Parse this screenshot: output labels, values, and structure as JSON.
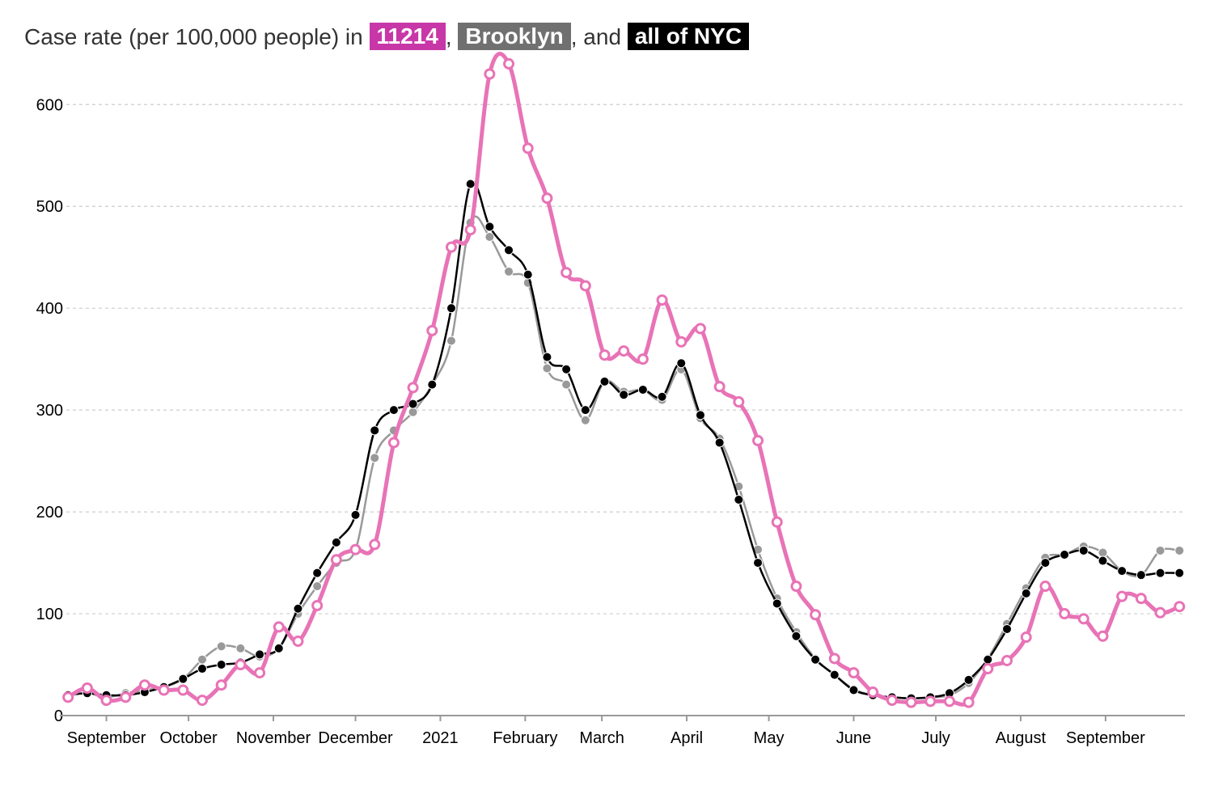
{
  "title": {
    "prefix": "Case rate (per 100,000 people) in",
    "zip": "11214",
    "sep1": ",",
    "borough": "Brooklyn",
    "sep2": ", and",
    "city": "all of NYC"
  },
  "colors": {
    "zip": "#e873b6",
    "zip_badge": "#c837a7",
    "borough": "#999999",
    "borough_badge": "#707070",
    "city": "#000000",
    "grid": "#cccccc",
    "axis": "#999999"
  },
  "chart_data": {
    "type": "line",
    "ylim": [
      0,
      655
    ],
    "y_ticks": [
      0,
      100,
      200,
      300,
      400,
      500,
      600
    ],
    "x_range": [
      "2020-08-15",
      "2021-09-30"
    ],
    "x_ticks": [
      {
        "date": "2020-09-01",
        "label": "September"
      },
      {
        "date": "2020-10-01",
        "label": "October"
      },
      {
        "date": "2020-11-01",
        "label": "November"
      },
      {
        "date": "2020-12-01",
        "label": "December"
      },
      {
        "date": "2021-01-01",
        "label": "2021"
      },
      {
        "date": "2021-02-01",
        "label": "February"
      },
      {
        "date": "2021-03-01",
        "label": "March"
      },
      {
        "date": "2021-04-01",
        "label": "April"
      },
      {
        "date": "2021-05-01",
        "label": "May"
      },
      {
        "date": "2021-06-01",
        "label": "June"
      },
      {
        "date": "2021-07-01",
        "label": "July"
      },
      {
        "date": "2021-08-01",
        "label": "August"
      },
      {
        "date": "2021-09-01",
        "label": "September"
      }
    ],
    "x": [
      "2020-08-18",
      "2020-08-25",
      "2020-09-01",
      "2020-09-08",
      "2020-09-15",
      "2020-09-22",
      "2020-09-29",
      "2020-10-06",
      "2020-10-13",
      "2020-10-20",
      "2020-10-27",
      "2020-11-03",
      "2020-11-10",
      "2020-11-17",
      "2020-11-24",
      "2020-12-01",
      "2020-12-08",
      "2020-12-15",
      "2020-12-22",
      "2020-12-29",
      "2021-01-05",
      "2021-01-12",
      "2021-01-19",
      "2021-01-26",
      "2021-02-02",
      "2021-02-09",
      "2021-02-16",
      "2021-02-23",
      "2021-03-02",
      "2021-03-09",
      "2021-03-16",
      "2021-03-23",
      "2021-03-30",
      "2021-04-06",
      "2021-04-13",
      "2021-04-20",
      "2021-04-27",
      "2021-05-04",
      "2021-05-11",
      "2021-05-18",
      "2021-05-25",
      "2021-06-01",
      "2021-06-08",
      "2021-06-15",
      "2021-06-22",
      "2021-06-29",
      "2021-07-06",
      "2021-07-13",
      "2021-07-20",
      "2021-07-27",
      "2021-08-03",
      "2021-08-10",
      "2021-08-17",
      "2021-08-24",
      "2021-08-31",
      "2021-09-07",
      "2021-09-14",
      "2021-09-21",
      "2021-09-28"
    ],
    "series": [
      {
        "name": "all of NYC",
        "color": "#000000",
        "marker": "filled",
        "values": [
          20,
          22,
          20,
          20,
          23,
          28,
          36,
          46,
          50,
          52,
          60,
          66,
          105,
          140,
          170,
          197,
          280,
          300,
          306,
          325,
          400,
          522,
          480,
          457,
          433,
          352,
          340,
          300,
          328,
          315,
          320,
          313,
          346,
          295,
          268,
          212,
          150,
          110,
          78,
          55,
          40,
          25,
          20,
          18,
          17,
          18,
          22,
          35,
          55,
          85,
          120,
          150,
          158,
          162,
          152,
          142,
          138,
          140,
          140
        ]
      },
      {
        "name": "Brooklyn",
        "color": "#999999",
        "marker": "filled",
        "values": [
          20,
          22,
          18,
          22,
          25,
          28,
          36,
          55,
          68,
          66,
          58,
          66,
          100,
          127,
          150,
          163,
          253,
          280,
          298,
          325,
          368,
          484,
          470,
          436,
          425,
          341,
          325,
          290,
          328,
          318,
          320,
          310,
          340,
          292,
          272,
          225,
          163,
          115,
          82,
          56,
          40,
          26,
          20,
          18,
          17,
          18,
          20,
          32,
          56,
          90,
          125,
          155,
          158,
          166,
          160,
          142,
          138,
          162,
          162
        ]
      },
      {
        "name": "11214",
        "color": "#e873b6",
        "marker": "hollow",
        "values": [
          18,
          27,
          15,
          18,
          30,
          25,
          25,
          15,
          30,
          50,
          42,
          87,
          73,
          108,
          153,
          163,
          168,
          268,
          322,
          378,
          460,
          477,
          630,
          640,
          557,
          508,
          435,
          422,
          354,
          358,
          350,
          408,
          367,
          380,
          323,
          308,
          270,
          190,
          127,
          99,
          56,
          42,
          23,
          15,
          13,
          14,
          14,
          13,
          46,
          54,
          77,
          127,
          100,
          95,
          78,
          117,
          115,
          101,
          107
        ]
      }
    ]
  }
}
